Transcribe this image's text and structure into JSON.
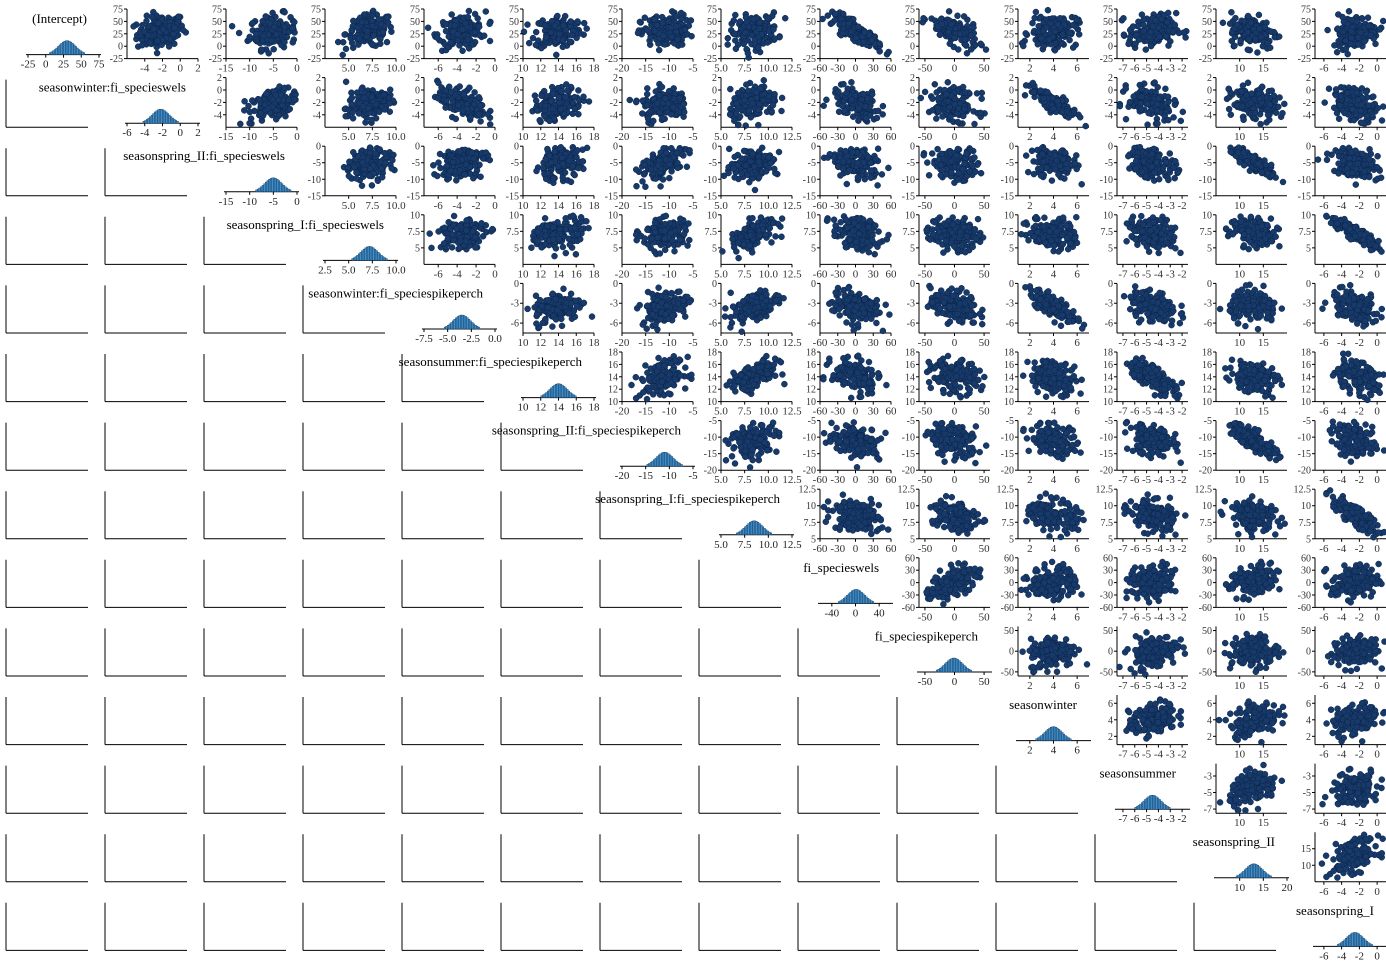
{
  "colors": {
    "point_fill": "#173a6b",
    "point_stroke": "#0b2447",
    "hist_fill": "#3f8fc9",
    "hist_stroke": "#12365f",
    "axis": "#000000"
  },
  "chart_data": {
    "type": "scatter",
    "variables": [
      {
        "name": "(Intercept)",
        "range": [
          -25,
          75
        ],
        "ticks": [
          -25,
          0,
          25,
          50,
          75
        ],
        "left_ticks": [
          75,
          50,
          25,
          0,
          -25
        ]
      },
      {
        "name": "seasonwinter:fi_specieswels",
        "range": [
          -6,
          2
        ],
        "ticks": [
          -6,
          -4,
          -2,
          0,
          2
        ],
        "left_ticks": [
          2,
          0,
          -2,
          -4
        ]
      },
      {
        "name": "seasonspring_II:fi_specieswels",
        "range": [
          -15,
          0
        ],
        "ticks": [
          -15,
          -10,
          -5,
          0
        ],
        "left_ticks": [
          0,
          -5,
          -10,
          -15
        ]
      },
      {
        "name": "seasonspring_I:fi_specieswels",
        "range": [
          2.5,
          10
        ],
        "ticks": [
          2.5,
          5.0,
          7.5,
          10.0
        ],
        "left_ticks": [
          10.0,
          7.5,
          5.0
        ]
      },
      {
        "name": "seasonwinter:fi_speciespikeperch",
        "range": [
          -7.5,
          0
        ],
        "ticks": [
          -7.5,
          -5.0,
          -2.5,
          0.0
        ],
        "left_ticks": [
          0,
          -3,
          -6,
          -9
        ]
      },
      {
        "name": "seasonsummer:fi_speciespikeperch",
        "range": [
          10,
          18
        ],
        "ticks": [
          10,
          12,
          14,
          16,
          18
        ],
        "left_ticks": [
          18,
          16,
          14,
          12,
          10
        ]
      },
      {
        "name": "seasonspring_II:fi_speciespikeperch",
        "range": [
          -20,
          -5
        ],
        "ticks": [
          -20,
          -15,
          -10,
          -5
        ],
        "left_ticks": [
          -5,
          -10,
          -15,
          -20
        ]
      },
      {
        "name": "seasonspring_I:fi_speciespikeperch",
        "range": [
          5,
          12.5
        ],
        "ticks": [
          5.0,
          7.5,
          10.0,
          12.5
        ],
        "left_ticks": [
          12.5,
          10.0,
          7.5,
          5.0
        ]
      },
      {
        "name": "fi_specieswels",
        "range": [
          -60,
          60
        ],
        "ticks": [
          -40,
          0,
          40
        ],
        "left_ticks": [
          60,
          30,
          0,
          -30,
          -60
        ]
      },
      {
        "name": "fi_speciespikeperch",
        "range": [
          -60,
          60
        ],
        "ticks": [
          -50,
          0,
          50
        ],
        "left_ticks": [
          50,
          0,
          -50
        ]
      },
      {
        "name": "seasonwinter",
        "range": [
          1,
          7
        ],
        "ticks": [
          2,
          4,
          6
        ],
        "left_ticks": [
          6,
          4,
          2
        ]
      },
      {
        "name": "seasonsummer",
        "range": [
          -7.5,
          -1.5
        ],
        "ticks": [
          -7,
          -6,
          -5,
          -4,
          -3,
          -2
        ],
        "left_ticks": [
          -3,
          -5,
          -7
        ]
      },
      {
        "name": "seasonspring_II",
        "range": [
          5,
          20
        ],
        "ticks": [
          10,
          15,
          20
        ],
        "left_ticks": [
          15,
          10
        ]
      },
      {
        "name": "seasonspring_I",
        "range": [
          -7,
          1
        ],
        "ticks": [
          -6,
          -4,
          -2,
          0
        ],
        "left_ticks": [
          -2,
          -4,
          -6
        ]
      }
    ],
    "bottom_tick_labels": [
      [
        "-25",
        "0",
        "25",
        "50",
        "75"
      ],
      [
        "-4",
        "-2",
        "0",
        "2"
      ],
      [
        "-15",
        "-10",
        "-5",
        "0"
      ],
      [
        "5.0",
        "7.5",
        "10.0"
      ],
      [
        "-8",
        "-6",
        "-4",
        "-2",
        "0"
      ],
      [
        "10",
        "12",
        "14",
        "16",
        "18"
      ],
      [
        "-20",
        "-15",
        "-10",
        "-5"
      ],
      [
        "5.0",
        "7.5",
        "10.0",
        "12.5"
      ],
      [
        "-60",
        "-30",
        "0",
        "30",
        "60"
      ],
      [
        "-50",
        "0",
        "50"
      ],
      [
        "2",
        "4",
        "6"
      ],
      [
        "-7",
        "-6",
        "-5",
        "-4",
        "-3",
        "-2"
      ],
      [
        "10",
        "15"
      ],
      [
        "-6",
        "-4",
        "-2",
        "0"
      ]
    ],
    "diag_tick_labels": [
      [
        "-25",
        "0",
        "25",
        "50",
        "75"
      ],
      [
        "-6",
        "-4",
        "-2",
        "0",
        "2"
      ],
      [
        "-15",
        "-10",
        "-5",
        "0"
      ],
      [
        "2.5",
        "5.0",
        "7.5",
        "10.0"
      ],
      [
        "-7.5",
        "-5.0",
        "-2.5",
        "0.0"
      ],
      [
        "10",
        "12",
        "14",
        "16",
        "18"
      ],
      [
        "-20",
        "-15",
        "-10",
        "-5"
      ],
      [
        "5.0",
        "7.5",
        "10.0",
        "12.5"
      ],
      [
        "-40",
        "0",
        "40"
      ],
      [
        "-50",
        "0",
        "50"
      ],
      [
        "2",
        "4",
        "6"
      ],
      [
        "-7",
        "-6",
        "-5",
        "-4",
        "-3",
        "-2"
      ],
      [
        "10",
        "15",
        "20"
      ],
      [
        "-6",
        "-4",
        "-2",
        "0"
      ]
    ],
    "histogram_means": [
      30,
      -2.2,
      -5,
      7.2,
      -3.5,
      14,
      -11,
      8.5,
      1,
      -1,
      4,
      -4.5,
      13,
      -2.5
    ],
    "correlation_upper": [
      [
        0,
        0.2,
        0.15,
        0.15,
        0.2,
        0.1,
        0.15,
        0.15,
        -0.85,
        -0.6,
        0.1,
        0.1,
        -0.2,
        0.1
      ],
      [
        0,
        0,
        0.45,
        0.35,
        -0.4,
        0.2,
        0.15,
        0.2,
        -0.3,
        -0.3,
        -0.85,
        -0.3,
        -0.2,
        -0.3
      ],
      [
        0,
        0,
        0,
        0.3,
        0.25,
        0.2,
        0.6,
        0.2,
        -0.2,
        -0.2,
        -0.25,
        -0.25,
        -0.9,
        -0.4
      ],
      [
        0,
        0,
        0,
        0,
        0.2,
        0.15,
        0.15,
        0.6,
        -0.2,
        -0.2,
        -0.2,
        -0.3,
        -0.25,
        -0.9
      ],
      [
        0,
        0,
        0,
        0,
        0,
        0.3,
        0.25,
        0.6,
        -0.2,
        -0.2,
        -0.8,
        -0.3,
        -0.2,
        -0.3
      ],
      [
        0,
        0,
        0,
        0,
        0,
        0,
        0.3,
        0.6,
        -0.3,
        -0.2,
        -0.3,
        -0.7,
        -0.3,
        -0.4
      ],
      [
        0,
        0,
        0,
        0,
        0,
        0,
        0,
        0.3,
        -0.3,
        -0.2,
        -0.3,
        -0.3,
        -0.8,
        -0.4
      ],
      [
        0,
        0,
        0,
        0,
        0,
        0,
        0,
        0,
        -0.2,
        -0.2,
        -0.3,
        -0.3,
        -0.3,
        -0.8
      ],
      [
        0,
        0,
        0,
        0,
        0,
        0,
        0,
        0,
        0,
        0.5,
        0.1,
        0.1,
        0.1,
        0.1
      ],
      [
        0,
        0,
        0,
        0,
        0,
        0,
        0,
        0,
        0,
        0,
        0.2,
        0.2,
        0.2,
        0.2
      ],
      [
        0,
        0,
        0,
        0,
        0,
        0,
        0,
        0,
        0,
        0,
        0,
        0.4,
        0.3,
        0.4
      ],
      [
        0,
        0,
        0,
        0,
        0,
        0,
        0,
        0,
        0,
        0,
        0,
        0,
        0.3,
        0.3
      ],
      [
        0,
        0,
        0,
        0,
        0,
        0,
        0,
        0,
        0,
        0,
        0,
        0,
        0,
        0.3
      ],
      [
        0,
        0,
        0,
        0,
        0,
        0,
        0,
        0,
        0,
        0,
        0,
        0,
        0,
        0
      ]
    ],
    "grid": false,
    "legend": "none",
    "title": "",
    "xlabel": "",
    "ylabel": ""
  }
}
